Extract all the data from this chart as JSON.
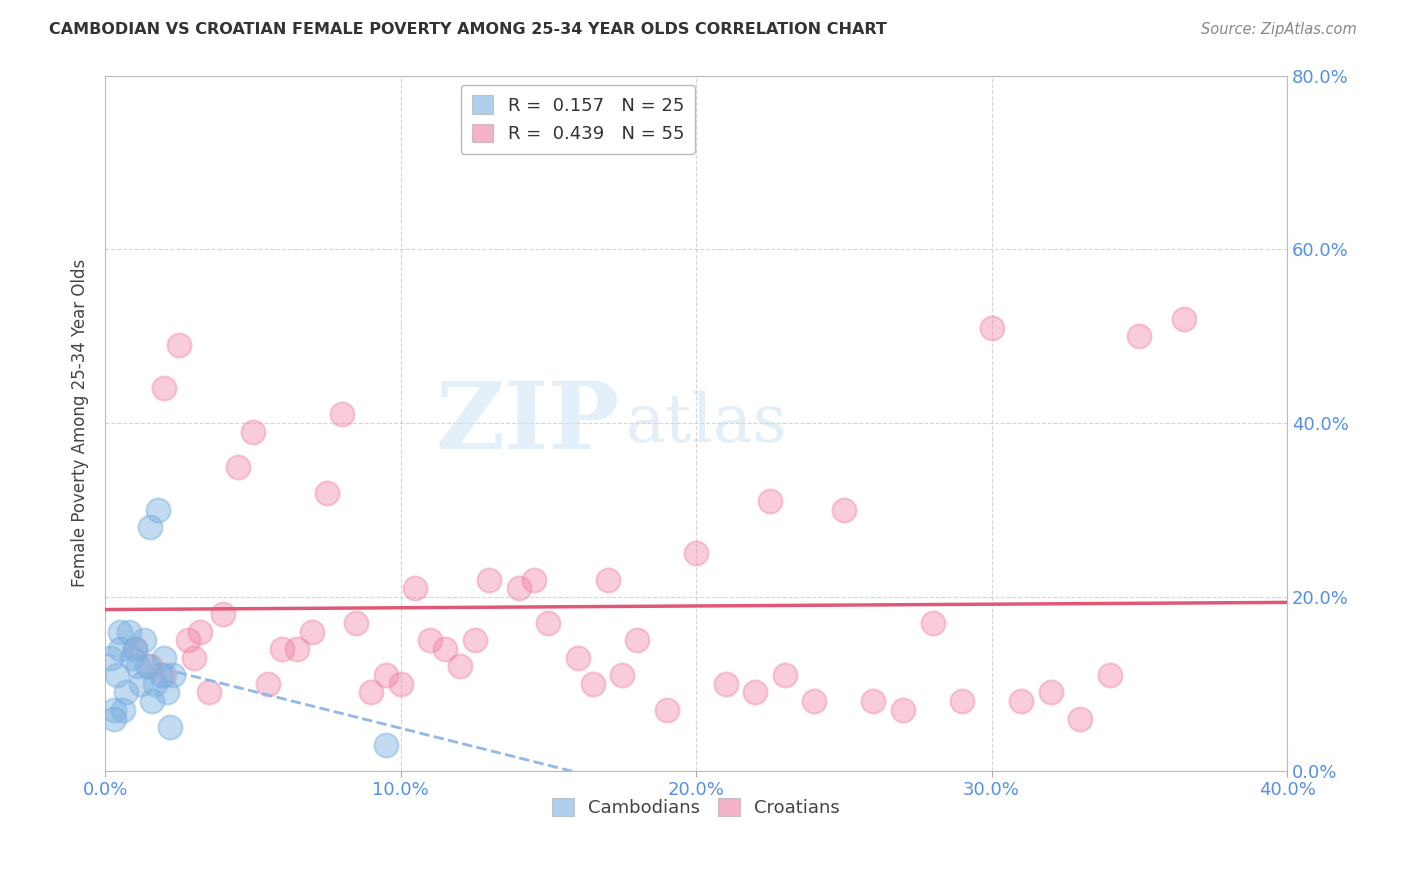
{
  "title": "CAMBODIAN VS CROATIAN FEMALE POVERTY AMONG 25-34 YEAR OLDS CORRELATION CHART",
  "source": "Source: ZipAtlas.com",
  "xlabel_vals": [
    0.0,
    10.0,
    20.0,
    30.0,
    40.0
  ],
  "ylabel_right_vals": [
    0.0,
    20.0,
    40.0,
    60.0,
    80.0
  ],
  "ylabel_label": "Female Poverty Among 25-34 Year Olds",
  "legend_r_n": [
    {
      "label": "R =  0.157   N = 25",
      "color": "#a8c8f0"
    },
    {
      "label": "R =  0.439   N = 55",
      "color": "#f0a0b8"
    }
  ],
  "watermark_zip": "ZIP",
  "watermark_atlas": "atlas",
  "cambodian_color": "#7ab0e0",
  "croatian_color": "#f080a0",
  "trendline_cambodian_color": "#90b8e8",
  "trendline_croatian_color": "#e05878",
  "cambodians_x": [
    0.2,
    0.3,
    0.4,
    0.5,
    0.6,
    0.7,
    0.8,
    0.9,
    1.0,
    1.1,
    1.2,
    1.3,
    1.4,
    1.5,
    1.6,
    1.7,
    1.8,
    1.9,
    2.0,
    2.1,
    2.2,
    2.3,
    0.3,
    0.5,
    9.5
  ],
  "cambodians_y": [
    13.0,
    7.0,
    11.0,
    14.0,
    7.0,
    9.0,
    16.0,
    13.0,
    14.0,
    12.0,
    10.0,
    15.0,
    12.0,
    28.0,
    8.0,
    10.0,
    30.0,
    11.0,
    13.0,
    9.0,
    5.0,
    11.0,
    6.0,
    16.0,
    3.0
  ],
  "croatians_x": [
    1.0,
    1.5,
    2.0,
    2.5,
    3.0,
    3.5,
    4.0,
    4.5,
    5.0,
    5.5,
    6.0,
    6.5,
    7.0,
    7.5,
    8.0,
    8.5,
    9.0,
    9.5,
    10.0,
    10.5,
    11.0,
    11.5,
    12.0,
    12.5,
    13.0,
    14.0,
    14.5,
    15.0,
    16.0,
    16.5,
    17.0,
    17.5,
    18.0,
    19.0,
    20.0,
    21.0,
    22.0,
    22.5,
    23.0,
    24.0,
    25.0,
    26.0,
    27.0,
    28.0,
    29.0,
    30.0,
    31.0,
    32.0,
    33.0,
    34.0,
    35.0,
    2.0,
    2.8,
    3.2,
    36.5
  ],
  "croatians_y": [
    14.0,
    12.0,
    11.0,
    49.0,
    13.0,
    9.0,
    18.0,
    35.0,
    39.0,
    10.0,
    14.0,
    14.0,
    16.0,
    32.0,
    41.0,
    17.0,
    9.0,
    11.0,
    10.0,
    21.0,
    15.0,
    14.0,
    12.0,
    15.0,
    22.0,
    21.0,
    22.0,
    17.0,
    13.0,
    10.0,
    22.0,
    11.0,
    15.0,
    7.0,
    25.0,
    10.0,
    9.0,
    31.0,
    11.0,
    8.0,
    30.0,
    8.0,
    7.0,
    17.0,
    8.0,
    51.0,
    8.0,
    9.0,
    6.0,
    11.0,
    50.0,
    44.0,
    15.0,
    16.0,
    52.0
  ],
  "background_color": "#ffffff",
  "grid_color": "#cccccc",
  "xlim": [
    0,
    40
  ],
  "ylim": [
    0,
    80
  ]
}
